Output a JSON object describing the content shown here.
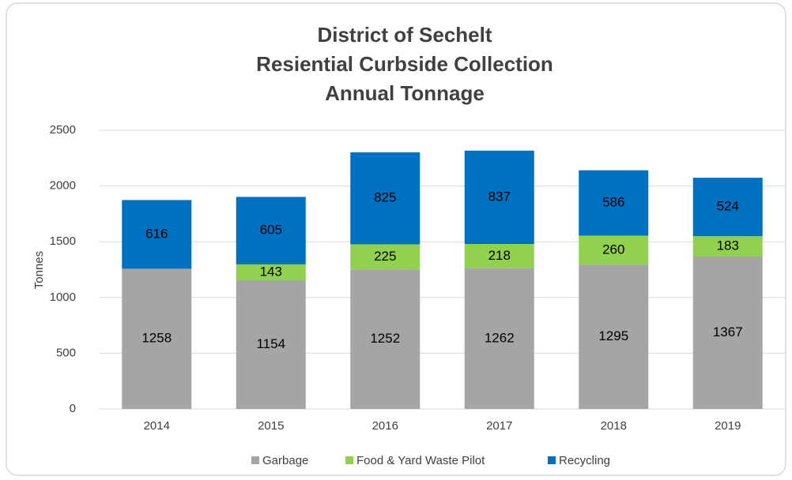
{
  "chart_data": {
    "type": "stacked_bar",
    "title": [
      "District of Sechelt",
      "Resiential Curbside Collection",
      "Annual Tonnage"
    ],
    "y_label": "Tonnes",
    "categories": [
      "2014",
      "2015",
      "2016",
      "2017",
      "2018",
      "2019"
    ],
    "series": [
      {
        "name": "Garbage",
        "color": "#a5a5a5",
        "values": [
          1258,
          1154,
          1252,
          1262,
          1295,
          1367
        ]
      },
      {
        "name": "Food & Yard Waste Pilot",
        "color": "#92d050",
        "values": [
          null,
          143,
          225,
          218,
          260,
          183
        ]
      },
      {
        "name": "Recycling",
        "color": "#0070c0",
        "values": [
          616,
          605,
          825,
          837,
          586,
          524
        ]
      }
    ],
    "ylim": [
      0,
      2500
    ],
    "yticks": [
      0,
      500,
      1000,
      1500,
      2000,
      2500
    ],
    "grid": true,
    "legend": "bottom"
  }
}
